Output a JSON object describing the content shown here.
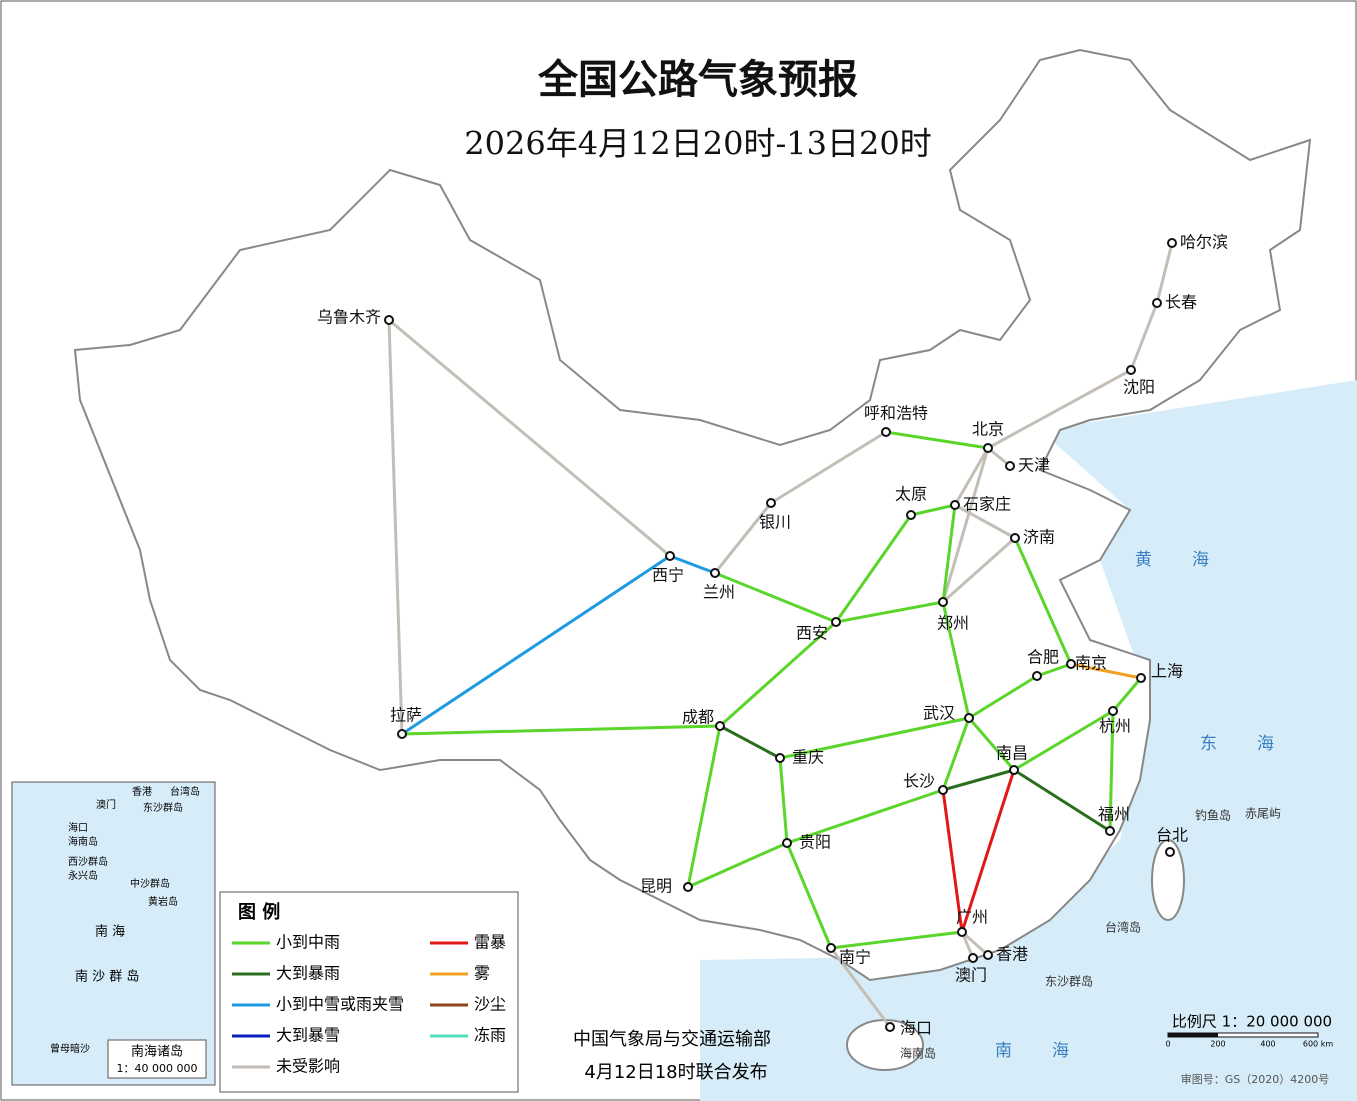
{
  "header": {
    "title": "全国公路气象预报",
    "subtitle": "2026年4月12日20时-13日20时"
  },
  "cities": [
    "乌鲁木齐",
    "哈尔滨",
    "长春",
    "沈阳",
    "呼和浩特",
    "北京",
    "天津",
    "太原",
    "石家庄",
    "银川",
    "济南",
    "西宁",
    "兰州",
    "郑州",
    "西安",
    "合肥",
    "南京",
    "上海",
    "拉萨",
    "成都",
    "武汉",
    "杭州",
    "重庆",
    "南昌",
    "长沙",
    "福州",
    "台北",
    "贵阳",
    "昆明",
    "广州",
    "香港",
    "澳门",
    "南宁",
    "海口"
  ],
  "islands": [
    "钓鱼岛",
    "赤尾屿",
    "台湾岛",
    "东沙群岛",
    "海南岛"
  ],
  "seas": [
    "黄海",
    "东海",
    "南海"
  ],
  "legend": {
    "title": "图 例",
    "items": [
      {
        "name": "小到中雨",
        "color": "#5ad52a"
      },
      {
        "name": "大到暴雨",
        "color": "#2a6e1e"
      },
      {
        "name": "小到中雪或雨夹雪",
        "color": "#1e9be0"
      },
      {
        "name": "大到暴雪",
        "color": "#0a1ebe"
      },
      {
        "name": "未受影响",
        "color": "#c3beb6"
      },
      {
        "name": "雷暴",
        "color": "#e01818"
      },
      {
        "name": "雾",
        "color": "#f0a020"
      },
      {
        "name": "沙尘",
        "color": "#8b4513"
      },
      {
        "name": "冻雨",
        "color": "#50e0c0"
      }
    ]
  },
  "publisher": [
    "中国气象局与交通运输部",
    "4月12日18时联合发布"
  ],
  "scale": {
    "label": "比例尺 1：20 000 000",
    "ticks": [
      "0",
      "200",
      "400",
      "600 km"
    ]
  },
  "review": "审图号：GS（2020）4200号",
  "inset": {
    "title": "南海诸岛",
    "scale": "1：40 000 000",
    "labels": [
      "香港",
      "台湾岛",
      "澳门",
      "东沙群岛",
      "海口",
      "海南岛",
      "西沙群岛",
      "永兴岛",
      "中沙群岛",
      "黄岩岛",
      "南 海",
      "南 沙 群 岛",
      "曾母暗沙"
    ]
  }
}
